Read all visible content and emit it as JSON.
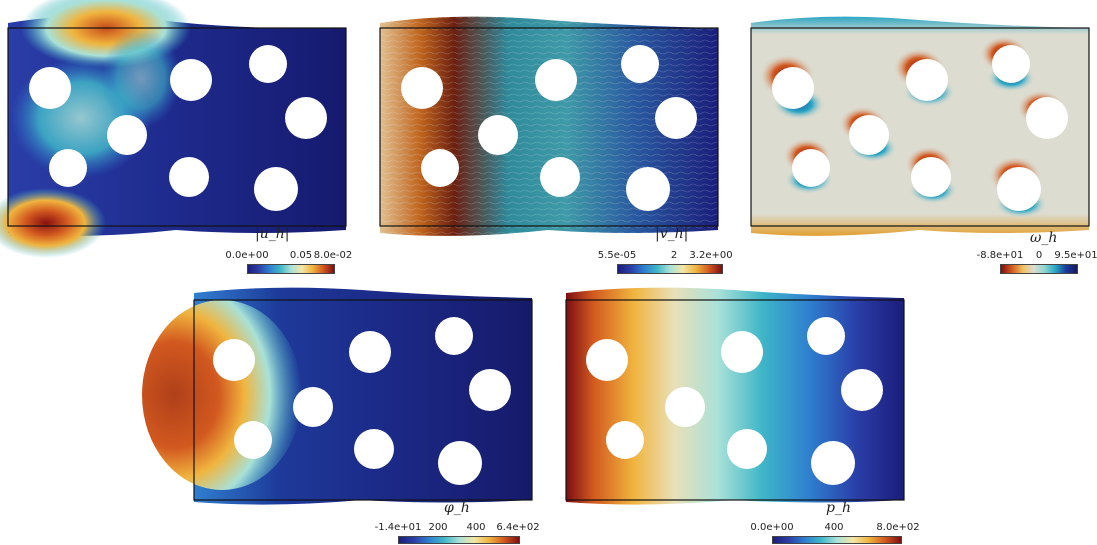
{
  "colormaps": {
    "turbo": [
      "#1b1d7a",
      "#2a3ea8",
      "#2f7fd0",
      "#3fb6c8",
      "#a9e1d8",
      "#f2e6a6",
      "#f0b43e",
      "#d2591f",
      "#7d0d13"
    ],
    "diverging": [
      "#7d0d13",
      "#d2591f",
      "#f0c060",
      "#dcdcd0",
      "#8fd6d0",
      "#2aa6c4",
      "#1a3a9a",
      "#151860"
    ]
  },
  "panels": [
    {
      "id": "u",
      "title": "|u_h|",
      "ticks": [
        "0.0e+00",
        "0.05",
        "8.0e-02"
      ],
      "colormap": "turbo"
    },
    {
      "id": "v",
      "title": "|v_h|",
      "ticks": [
        "5.5e-05",
        "2",
        "3.2e+00"
      ],
      "colormap": "turbo"
    },
    {
      "id": "w",
      "title": "ω_h",
      "ticks": [
        "-8.8e+01",
        "0",
        "9.5e+01"
      ],
      "colormap": "diverging"
    },
    {
      "id": "phi",
      "title": "φ_h",
      "ticks": [
        "-1.4e+01",
        "200",
        "400",
        "6.4e+02"
      ],
      "colormap": "turbo"
    },
    {
      "id": "p",
      "title": "p_h",
      "ticks": [
        "0.0e+00",
        "400",
        "8.0e+02"
      ],
      "colormap": "turbo"
    }
  ]
}
